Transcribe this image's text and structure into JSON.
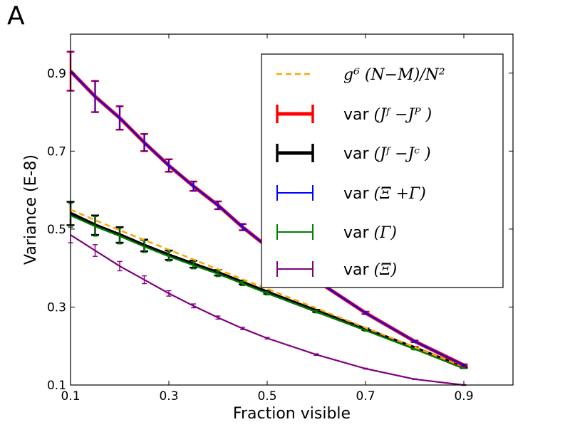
{
  "panel_label": "A",
  "chart_data": {
    "type": "line",
    "xlabel": "Fraction visible",
    "ylabel": "Variance (E-8)",
    "xlim": [
      0.1,
      1.0
    ],
    "ylim": [
      0.1,
      1.0
    ],
    "xticks": [
      "0.1",
      "0.3",
      "0.5",
      "0.7",
      "0.9"
    ],
    "yticks": [
      "0.1",
      "0.3",
      "0.5",
      "0.7",
      "0.9"
    ],
    "legend_position": "top-right",
    "grid": false,
    "x": [
      0.1,
      0.15,
      0.2,
      0.25,
      0.3,
      0.35,
      0.4,
      0.45,
      0.5,
      0.6,
      0.7,
      0.8,
      0.9
    ],
    "series": [
      {
        "name": "g^6 (N−M)/N^2",
        "style": "dashed",
        "color": "#FFA500",
        "values": [
          0.55,
          0.523,
          0.497,
          0.472,
          0.447,
          0.422,
          0.397,
          0.371,
          0.347,
          0.297,
          0.247,
          0.197,
          0.147
        ],
        "errors": []
      },
      {
        "name": "var (J^F − J^P)",
        "style": "errorbar-thick",
        "color": "#FF0000",
        "values": [
          0.905,
          0.84,
          0.785,
          0.722,
          0.663,
          0.61,
          0.561,
          0.505,
          0.455,
          0.368,
          0.285,
          0.212,
          0.151
        ],
        "errors": [
          0.05,
          0.04,
          0.03,
          0.022,
          0.016,
          0.012,
          0.01,
          0.008,
          0.006,
          0.004,
          0.003,
          0.002,
          0.002
        ]
      },
      {
        "name": "var (J^F − J^C)",
        "style": "errorbar-thick",
        "color": "#000000",
        "values": [
          0.54,
          0.51,
          0.485,
          0.458,
          0.433,
          0.41,
          0.388,
          0.363,
          0.338,
          0.29,
          0.243,
          0.195,
          0.145
        ],
        "errors": [
          0.03,
          0.025,
          0.02,
          0.015,
          0.012,
          0.009,
          0.007,
          0.005,
          0.004,
          0.003,
          0.002,
          0.002,
          0.001
        ]
      },
      {
        "name": "var (Ξ + Γ)",
        "style": "errorbar",
        "color": "#0000FF",
        "values": [
          0.905,
          0.84,
          0.785,
          0.722,
          0.663,
          0.61,
          0.561,
          0.505,
          0.455,
          0.368,
          0.285,
          0.212,
          0.151
        ],
        "errors": [
          0.05,
          0.04,
          0.03,
          0.022,
          0.016,
          0.012,
          0.01,
          0.008,
          0.006,
          0.004,
          0.003,
          0.002,
          0.002
        ]
      },
      {
        "name": "var (Γ)",
        "style": "errorbar",
        "color": "#008000",
        "values": [
          0.535,
          0.507,
          0.482,
          0.455,
          0.43,
          0.407,
          0.385,
          0.36,
          0.335,
          0.288,
          0.24,
          0.192,
          0.143
        ],
        "errors": [
          0.03,
          0.025,
          0.02,
          0.015,
          0.012,
          0.009,
          0.007,
          0.005,
          0.004,
          0.003,
          0.002,
          0.002,
          0.001
        ]
      },
      {
        "name": "var (Ξ)",
        "style": "errorbar",
        "color": "#800080",
        "values": [
          0.485,
          0.445,
          0.405,
          0.37,
          0.335,
          0.303,
          0.273,
          0.245,
          0.22,
          0.178,
          0.142,
          0.115,
          0.1
        ],
        "errors": [
          0.02,
          0.015,
          0.012,
          0.01,
          0.007,
          0.005,
          0.004,
          0.003,
          0.002,
          0.002,
          0.001,
          0.001,
          0.001
        ]
      }
    ],
    "legend": [
      {
        "series_index": 0,
        "var_prefix": "",
        "math": "g⁶ (N−M)/N²"
      },
      {
        "series_index": 1,
        "var_prefix": "var",
        "math": "(Jᶠ −Jᴾ )"
      },
      {
        "series_index": 2,
        "var_prefix": "var",
        "math": "(Jᶠ −Jᶜ )"
      },
      {
        "series_index": 3,
        "var_prefix": "var",
        "math": "(Ξ +Γ)"
      },
      {
        "series_index": 4,
        "var_prefix": "var",
        "math": "(Γ)"
      },
      {
        "series_index": 5,
        "var_prefix": "var",
        "math": "(Ξ)"
      }
    ]
  }
}
